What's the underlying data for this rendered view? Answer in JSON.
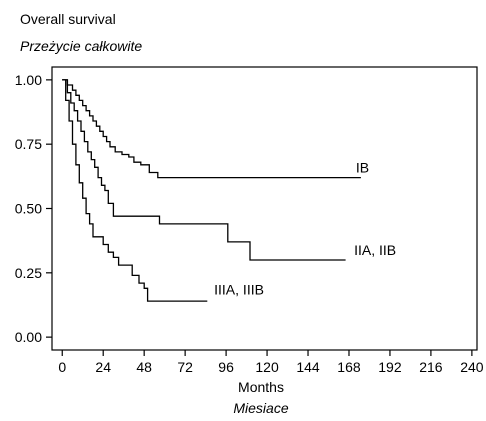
{
  "chart_data": {
    "type": "line",
    "title": "Overall survival",
    "subtitle": "Przeżycie całkowite",
    "xlabel": "Months",
    "xlabel_alt": "Miesiace",
    "ylabel": "",
    "xlim": [
      -6,
      243
    ],
    "ylim": [
      -0.05,
      1.05
    ],
    "xticks": [
      0,
      24,
      48,
      72,
      96,
      120,
      144,
      168,
      192,
      216,
      240
    ],
    "xtick_labels": [
      "0",
      "24",
      "48",
      "72",
      "96",
      "120",
      "144",
      "168",
      "192",
      "216",
      "240"
    ],
    "yticks": [
      0,
      0.25,
      0.5,
      0.75,
      1
    ],
    "ytick_labels": [
      "0.00",
      "0.25",
      "0.50",
      "0.75",
      "1.00"
    ],
    "grid": false,
    "line_color": "#000000",
    "series": [
      {
        "name": "IB",
        "label_at": [
          172,
          0.64
        ],
        "points": [
          [
            0,
            1.0
          ],
          [
            3,
            1.0
          ],
          [
            3,
            0.98
          ],
          [
            6,
            0.98
          ],
          [
            6,
            0.96
          ],
          [
            8,
            0.96
          ],
          [
            8,
            0.94
          ],
          [
            10,
            0.94
          ],
          [
            10,
            0.92
          ],
          [
            12,
            0.92
          ],
          [
            12,
            0.9
          ],
          [
            14,
            0.9
          ],
          [
            14,
            0.88
          ],
          [
            16,
            0.88
          ],
          [
            16,
            0.86
          ],
          [
            18,
            0.86
          ],
          [
            18,
            0.84
          ],
          [
            20,
            0.84
          ],
          [
            20,
            0.82
          ],
          [
            22,
            0.82
          ],
          [
            22,
            0.8
          ],
          [
            24,
            0.8
          ],
          [
            24,
            0.78
          ],
          [
            26,
            0.78
          ],
          [
            26,
            0.76
          ],
          [
            28,
            0.76
          ],
          [
            28,
            0.74
          ],
          [
            31,
            0.74
          ],
          [
            31,
            0.72
          ],
          [
            35,
            0.72
          ],
          [
            35,
            0.71
          ],
          [
            39,
            0.71
          ],
          [
            39,
            0.7
          ],
          [
            42,
            0.7
          ],
          [
            42,
            0.68
          ],
          [
            46,
            0.68
          ],
          [
            46,
            0.67
          ],
          [
            51,
            0.67
          ],
          [
            51,
            0.64
          ],
          [
            56,
            0.64
          ],
          [
            56,
            0.62
          ],
          [
            175,
            0.62
          ]
        ]
      },
      {
        "name": "IIA, IIB",
        "label_at": [
          171,
          0.32
        ],
        "points": [
          [
            0,
            1.0
          ],
          [
            3,
            1.0
          ],
          [
            3,
            0.95
          ],
          [
            5,
            0.95
          ],
          [
            5,
            0.91
          ],
          [
            7,
            0.91
          ],
          [
            7,
            0.88
          ],
          [
            9,
            0.88
          ],
          [
            9,
            0.84
          ],
          [
            11,
            0.84
          ],
          [
            11,
            0.8
          ],
          [
            13,
            0.8
          ],
          [
            13,
            0.76
          ],
          [
            15,
            0.76
          ],
          [
            15,
            0.72
          ],
          [
            17,
            0.72
          ],
          [
            17,
            0.69
          ],
          [
            19,
            0.69
          ],
          [
            19,
            0.66
          ],
          [
            21,
            0.66
          ],
          [
            21,
            0.62
          ],
          [
            23,
            0.62
          ],
          [
            23,
            0.59
          ],
          [
            25,
            0.59
          ],
          [
            25,
            0.57
          ],
          [
            27,
            0.57
          ],
          [
            27,
            0.52
          ],
          [
            30,
            0.52
          ],
          [
            30,
            0.47
          ],
          [
            57,
            0.47
          ],
          [
            57,
            0.44
          ],
          [
            97,
            0.44
          ],
          [
            97,
            0.37
          ],
          [
            110,
            0.37
          ],
          [
            110,
            0.3
          ],
          [
            166,
            0.3
          ]
        ]
      },
      {
        "name": "IIIA, IIIB",
        "label_at": [
          89,
          0.165
        ],
        "points": [
          [
            0,
            1.0
          ],
          [
            2,
            1.0
          ],
          [
            2,
            0.92
          ],
          [
            4,
            0.92
          ],
          [
            4,
            0.84
          ],
          [
            6,
            0.84
          ],
          [
            6,
            0.75
          ],
          [
            8,
            0.75
          ],
          [
            8,
            0.67
          ],
          [
            10,
            0.67
          ],
          [
            10,
            0.6
          ],
          [
            12,
            0.6
          ],
          [
            12,
            0.54
          ],
          [
            14,
            0.54
          ],
          [
            14,
            0.48
          ],
          [
            16,
            0.48
          ],
          [
            16,
            0.44
          ],
          [
            18,
            0.44
          ],
          [
            18,
            0.39
          ],
          [
            24,
            0.39
          ],
          [
            24,
            0.36
          ],
          [
            27,
            0.36
          ],
          [
            27,
            0.33
          ],
          [
            30,
            0.33
          ],
          [
            30,
            0.31
          ],
          [
            33,
            0.31
          ],
          [
            33,
            0.28
          ],
          [
            41,
            0.28
          ],
          [
            41,
            0.24
          ],
          [
            45,
            0.24
          ],
          [
            45,
            0.21
          ],
          [
            48,
            0.21
          ],
          [
            48,
            0.19
          ],
          [
            50,
            0.19
          ],
          [
            50,
            0.14
          ],
          [
            85,
            0.14
          ]
        ]
      }
    ]
  }
}
